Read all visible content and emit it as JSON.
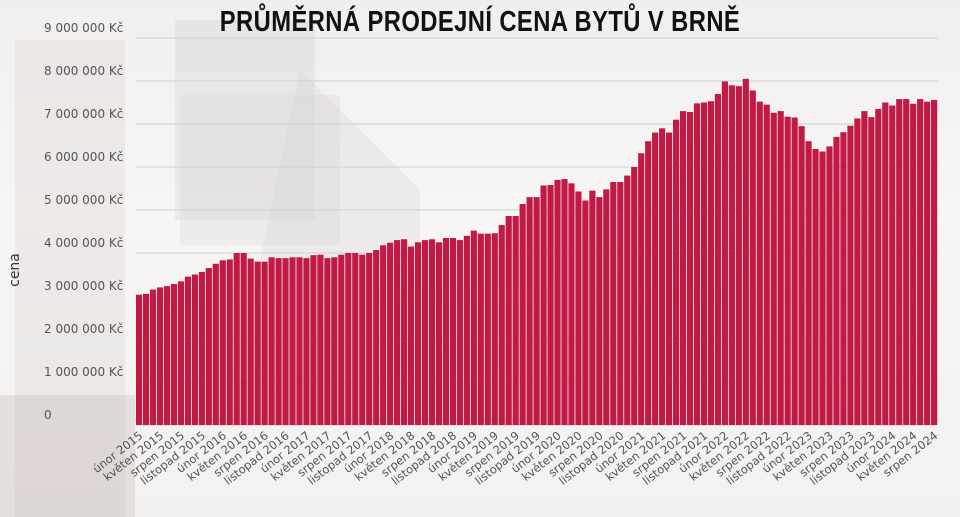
{
  "chart_data": {
    "type": "bar",
    "title": "PRŮMĚRNÁ PRODEJNÍ CENA BYTŮ V BRNĚ",
    "xlabel": "",
    "ylabel": "cena",
    "ylim": [
      0,
      9000000
    ],
    "grid": true,
    "bar_color": "#c01a45",
    "y_ticks": [
      "0",
      "1 000 000 Kč",
      "2 000 000 Kč",
      "3 000 000 Kč",
      "4 000 000 Kč",
      "5 000 000 Kč",
      "6 000 000 Kč",
      "7 000 000 Kč",
      "8 000 000 Kč",
      "9 000 000 Kč"
    ],
    "x_ticks": [
      "únor 2015",
      "květen 2015",
      "srpen 2015",
      "listopad 2015",
      "únor 2016",
      "květen 2016",
      "srpen 2016",
      "listopad 2016",
      "únor 2017",
      "květen 2017",
      "srpen 2017",
      "listopad 2017",
      "únor 2018",
      "květen 2018",
      "srpen 2018",
      "listopad 2018",
      "únor 2019",
      "květen 2019",
      "srpen 2019",
      "listopad 2019",
      "únor 2020",
      "květen 2020",
      "srpen 2020",
      "listopad 2020",
      "únor 2021",
      "květen 2021",
      "srpen 2021",
      "listopad 2021",
      "únor 2022",
      "květen 2022",
      "srpen 2022",
      "listopad 2022",
      "únor 2023",
      "květen 2023",
      "srpen 2023",
      "listopad 2023",
      "únor 2024",
      "květen 2024",
      "srpen 2024"
    ],
    "values": [
      3030000,
      3050000,
      3150000,
      3200000,
      3230000,
      3280000,
      3340000,
      3450000,
      3500000,
      3560000,
      3650000,
      3750000,
      3830000,
      3850000,
      4000000,
      4000000,
      3870000,
      3800000,
      3800000,
      3900000,
      3880000,
      3880000,
      3900000,
      3900000,
      3880000,
      3950000,
      3960000,
      3880000,
      3900000,
      3960000,
      4000000,
      4000000,
      3960000,
      4000000,
      4070000,
      4180000,
      4240000,
      4300000,
      4320000,
      4150000,
      4250000,
      4300000,
      4320000,
      4250000,
      4350000,
      4350000,
      4300000,
      4400000,
      4520000,
      4450000,
      4450000,
      4460000,
      4650000,
      4860000,
      4860000,
      5140000,
      5300000,
      5300000,
      5570000,
      5580000,
      5700000,
      5720000,
      5620000,
      5430000,
      5220000,
      5450000,
      5300000,
      5480000,
      5650000,
      5650000,
      5800000,
      6000000,
      6320000,
      6600000,
      6800000,
      6900000,
      6800000,
      7100000,
      7300000,
      7280000,
      7480000,
      7500000,
      7530000,
      7700000,
      7990000,
      7900000,
      7880000,
      8050000,
      7780000,
      7520000,
      7450000,
      7260000,
      7300000,
      7170000,
      7150000,
      6950000,
      6600000,
      6420000,
      6360000,
      6480000,
      6700000,
      6810000,
      6960000,
      7130000,
      7300000,
      7160000,
      7350000,
      7500000,
      7430000,
      7580000,
      7580000,
      7470000,
      7580000,
      7520000,
      7560000
    ]
  }
}
